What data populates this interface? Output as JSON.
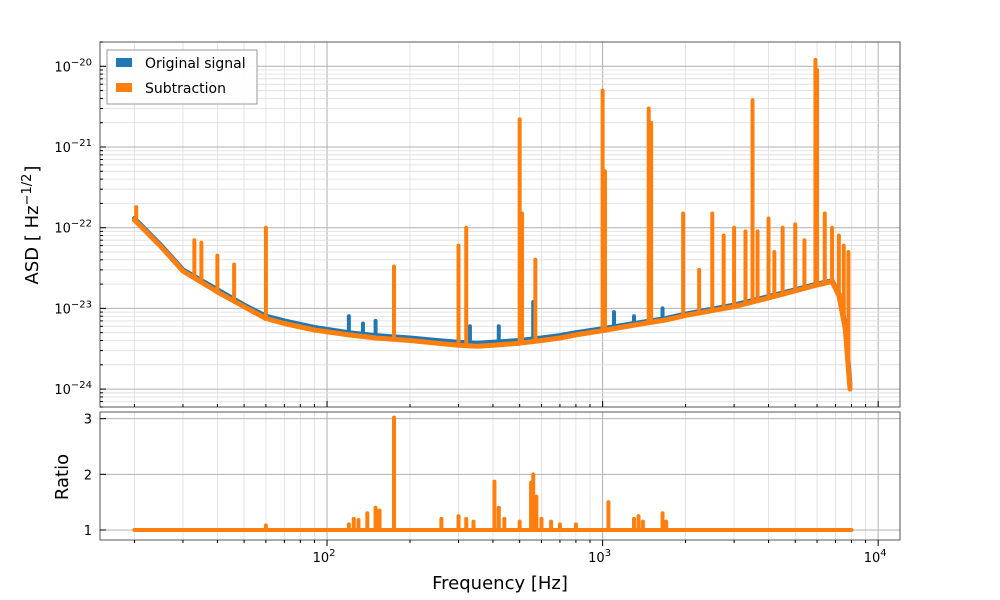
{
  "chart_data": [
    {
      "type": "line",
      "scale": {
        "x": "log",
        "y": "log"
      },
      "grid": true,
      "legend_position": "top-left",
      "xlim": [
        15,
        12000
      ],
      "ylim": [
        6e-25,
        2e-20
      ],
      "ylabel_text": "ASD [ Hz",
      "ylabel_exp": "−1/2",
      "ylabel_close": "]",
      "y_tick_labels": [
        {
          "value": 1e-24,
          "base": "10",
          "exp": "−24"
        },
        {
          "value": 1e-23,
          "base": "10",
          "exp": "−23"
        },
        {
          "value": 1e-22,
          "base": "10",
          "exp": "−22"
        },
        {
          "value": 1e-21,
          "base": "10",
          "exp": "−21"
        },
        {
          "value": 1e-20,
          "base": "10",
          "exp": "−20"
        }
      ],
      "legend": [
        {
          "name": "Original signal",
          "color": "#1f77b4"
        },
        {
          "name": "Subtraction",
          "color": "#ff7f0e"
        }
      ],
      "series": [
        {
          "name": "Original signal",
          "color": "#1f77b4",
          "points": [
            [
              20,
              1.3e-22
            ],
            [
              25,
              6e-23
            ],
            [
              30,
              3e-23
            ],
            [
              40,
              1.7e-23
            ],
            [
              50,
              1.1e-23
            ],
            [
              60,
              8e-24
            ],
            [
              70,
              7e-24
            ],
            [
              90,
              5.8e-24
            ],
            [
              120,
              5e-24
            ],
            [
              150,
              4.6e-24
            ],
            [
              200,
              4.3e-24
            ],
            [
              250,
              4e-24
            ],
            [
              300,
              3.8e-24
            ],
            [
              350,
              3.7e-24
            ],
            [
              400,
              3.8e-24
            ],
            [
              500,
              4e-24
            ],
            [
              600,
              4.3e-24
            ],
            [
              700,
              4.6e-24
            ],
            [
              800,
              5e-24
            ],
            [
              1000,
              5.6e-24
            ],
            [
              1300,
              6.5e-24
            ],
            [
              1700,
              7.5e-24
            ],
            [
              2000,
              8.5e-24
            ],
            [
              3000,
              1.1e-23
            ],
            [
              4000,
              1.4e-23
            ],
            [
              5000,
              1.7e-23
            ],
            [
              6000,
              2e-23
            ],
            [
              6800,
              2.2e-23
            ],
            [
              7200,
              1.5e-23
            ],
            [
              7600,
              6e-24
            ],
            [
              7900,
              1.1e-24
            ]
          ],
          "lines": [
            {
              "x": 120,
              "y": 8e-24
            },
            {
              "x": 135,
              "y": 6.5e-24
            },
            {
              "x": 150,
              "y": 7e-24
            },
            {
              "x": 175,
              "y": 2e-23
            },
            {
              "x": 330,
              "y": 6e-24
            },
            {
              "x": 420,
              "y": 6e-24
            },
            {
              "x": 560,
              "y": 1.2e-23
            },
            {
              "x": 1100,
              "y": 9e-24
            },
            {
              "x": 1300,
              "y": 8e-24
            },
            {
              "x": 1650,
              "y": 1e-23
            }
          ]
        },
        {
          "name": "Subtraction",
          "color": "#ff7f0e",
          "points": [
            [
              20,
              1.25e-22
            ],
            [
              25,
              5.8e-23
            ],
            [
              30,
              2.9e-23
            ],
            [
              40,
              1.6e-23
            ],
            [
              50,
              1.05e-23
            ],
            [
              60,
              7.5e-24
            ],
            [
              70,
              6.5e-24
            ],
            [
              90,
              5.4e-24
            ],
            [
              120,
              4.7e-24
            ],
            [
              150,
              4.3e-24
            ],
            [
              200,
              4e-24
            ],
            [
              250,
              3.7e-24
            ],
            [
              300,
              3.5e-24
            ],
            [
              350,
              3.4e-24
            ],
            [
              400,
              3.5e-24
            ],
            [
              500,
              3.7e-24
            ],
            [
              600,
              4e-24
            ],
            [
              700,
              4.3e-24
            ],
            [
              800,
              4.7e-24
            ],
            [
              1000,
              5.3e-24
            ],
            [
              1300,
              6.2e-24
            ],
            [
              1700,
              7.2e-24
            ],
            [
              2000,
              8.2e-24
            ],
            [
              3000,
              1.05e-23
            ],
            [
              4000,
              1.35e-23
            ],
            [
              5000,
              1.65e-23
            ],
            [
              6000,
              1.95e-23
            ],
            [
              6800,
              2.15e-23
            ],
            [
              7200,
              1.45e-23
            ],
            [
              7600,
              5.5e-24
            ],
            [
              7900,
              1e-24
            ]
          ],
          "lines": [
            {
              "x": 20.3,
              "y": 1.8e-22
            },
            {
              "x": 33,
              "y": 7e-23
            },
            {
              "x": 35,
              "y": 6.5e-23
            },
            {
              "x": 40,
              "y": 4.5e-23
            },
            {
              "x": 46,
              "y": 3.5e-23
            },
            {
              "x": 60,
              "y": 1e-22
            },
            {
              "x": 175,
              "y": 3.3e-23
            },
            {
              "x": 300,
              "y": 6e-23
            },
            {
              "x": 320,
              "y": 1e-22
            },
            {
              "x": 500,
              "y": 2.2e-21
            },
            {
              "x": 510,
              "y": 1.5e-22
            },
            {
              "x": 570,
              "y": 4e-23
            },
            {
              "x": 1000,
              "y": 5e-21
            },
            {
              "x": 1020,
              "y": 5e-22
            },
            {
              "x": 1470,
              "y": 3e-21
            },
            {
              "x": 1500,
              "y": 2e-21
            },
            {
              "x": 1960,
              "y": 1.5e-22
            },
            {
              "x": 2240,
              "y": 3e-23
            },
            {
              "x": 2500,
              "y": 1.5e-22
            },
            {
              "x": 2750,
              "y": 8e-23
            },
            {
              "x": 3000,
              "y": 1e-22
            },
            {
              "x": 3300,
              "y": 9e-23
            },
            {
              "x": 3500,
              "y": 3.8e-21
            },
            {
              "x": 3650,
              "y": 9e-23
            },
            {
              "x": 4000,
              "y": 1.3e-22
            },
            {
              "x": 4200,
              "y": 5e-23
            },
            {
              "x": 4500,
              "y": 1e-22
            },
            {
              "x": 5000,
              "y": 1.1e-22
            },
            {
              "x": 5400,
              "y": 7e-23
            },
            {
              "x": 5920,
              "y": 1.2e-20
            },
            {
              "x": 6000,
              "y": 9e-21
            },
            {
              "x": 6400,
              "y": 1.5e-22
            },
            {
              "x": 6800,
              "y": 1e-22
            },
            {
              "x": 7200,
              "y": 8e-23
            },
            {
              "x": 7500,
              "y": 6e-23
            },
            {
              "x": 7800,
              "y": 5e-23
            }
          ]
        }
      ]
    },
    {
      "type": "line",
      "scale": {
        "x": "log",
        "y": "linear"
      },
      "grid": true,
      "xlim": [
        15,
        12000
      ],
      "ylim": [
        0.82,
        3.12
      ],
      "xlabel": "Frequency [Hz]",
      "ylabel": "Ratio",
      "y_ticks": [
        1,
        2,
        3
      ],
      "y_tick_labels": [
        "1",
        "2",
        "3"
      ],
      "x_tick_labels": [
        {
          "value": 100,
          "base": "10",
          "exp": "2"
        },
        {
          "value": 1000,
          "base": "10",
          "exp": "3"
        },
        {
          "value": 10000,
          "base": "10",
          "exp": "4"
        }
      ],
      "series": [
        {
          "name": "",
          "color": "#ff7f0e",
          "points": [
            [
              20,
              1
            ],
            [
              8000,
              1
            ]
          ],
          "spikes": [
            {
              "x": 60,
              "y": 1.08
            },
            {
              "x": 120,
              "y": 1.1
            },
            {
              "x": 125,
              "y": 1.2
            },
            {
              "x": 130,
              "y": 1.18
            },
            {
              "x": 140,
              "y": 1.3
            },
            {
              "x": 150,
              "y": 1.4
            },
            {
              "x": 155,
              "y": 1.35
            },
            {
              "x": 175,
              "y": 3.02
            },
            {
              "x": 260,
              "y": 1.2
            },
            {
              "x": 300,
              "y": 1.25
            },
            {
              "x": 320,
              "y": 1.2
            },
            {
              "x": 340,
              "y": 1.15
            },
            {
              "x": 405,
              "y": 1.87
            },
            {
              "x": 420,
              "y": 1.4
            },
            {
              "x": 440,
              "y": 1.2
            },
            {
              "x": 500,
              "y": 1.15
            },
            {
              "x": 550,
              "y": 1.85
            },
            {
              "x": 560,
              "y": 2.0
            },
            {
              "x": 575,
              "y": 1.6
            },
            {
              "x": 600,
              "y": 1.2
            },
            {
              "x": 650,
              "y": 1.15
            },
            {
              "x": 700,
              "y": 1.1
            },
            {
              "x": 800,
              "y": 1.1
            },
            {
              "x": 1050,
              "y": 1.5
            },
            {
              "x": 1300,
              "y": 1.2
            },
            {
              "x": 1350,
              "y": 1.25
            },
            {
              "x": 1400,
              "y": 1.15
            },
            {
              "x": 1650,
              "y": 1.3
            },
            {
              "x": 1700,
              "y": 1.15
            }
          ]
        }
      ]
    }
  ]
}
